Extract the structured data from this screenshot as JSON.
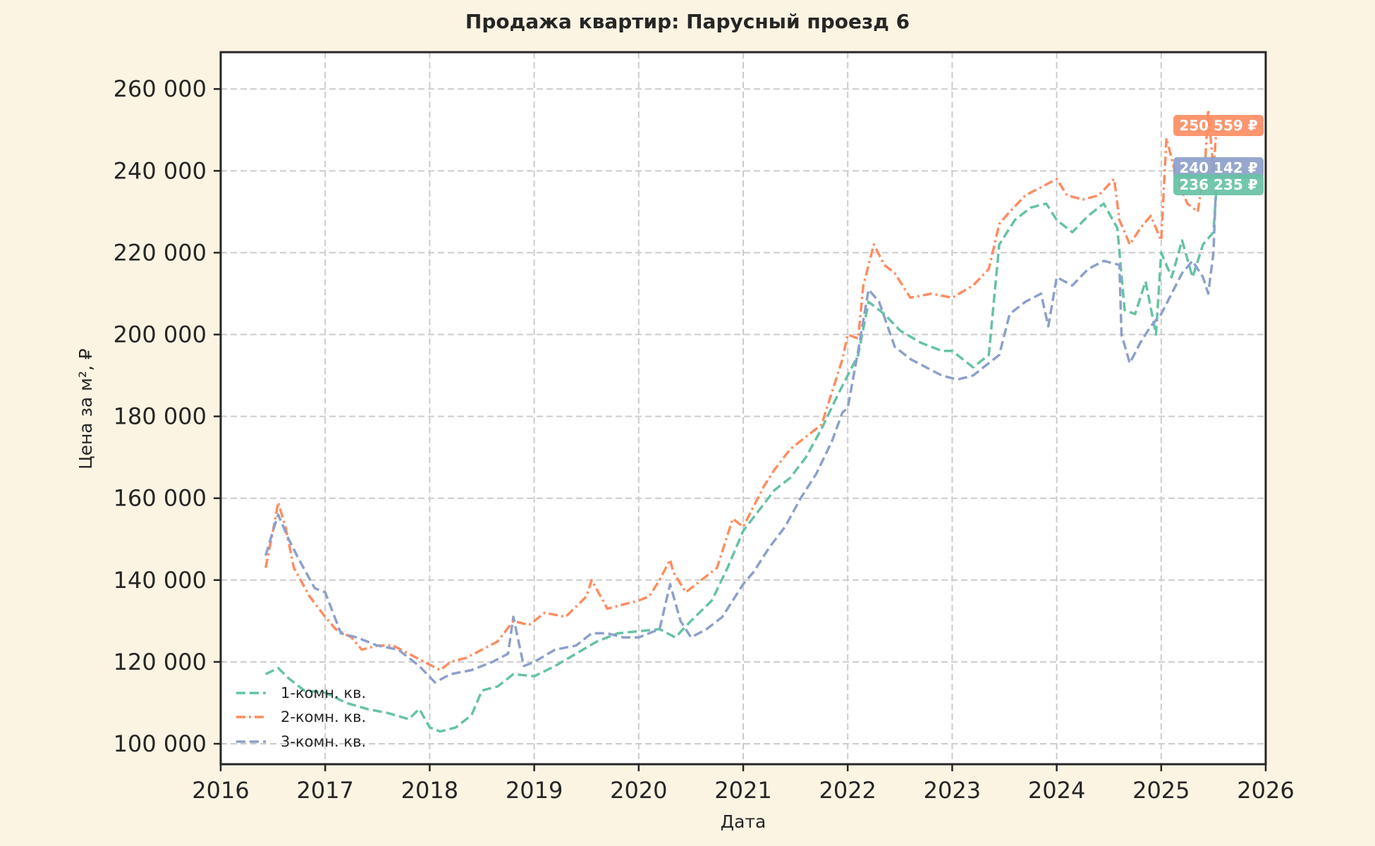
{
  "chart_data": {
    "type": "line",
    "title": "Продажа квартир: Парусный проезд 6",
    "xlabel": "Дата",
    "ylabel": "Цена за м², ₽",
    "xlim": [
      2016,
      2026
    ],
    "ylim": [
      95000,
      269000
    ],
    "xticks": [
      2016,
      2017,
      2018,
      2019,
      2020,
      2021,
      2022,
      2023,
      2024,
      2025,
      2026
    ],
    "xtick_labels": [
      "2016",
      "2017",
      "2018",
      "2019",
      "2020",
      "2021",
      "2022",
      "2023",
      "2024",
      "2025",
      "2026"
    ],
    "yticks": [
      100000,
      120000,
      140000,
      160000,
      180000,
      200000,
      220000,
      240000,
      260000
    ],
    "ytick_labels": [
      "100 000",
      "120 000",
      "140 000",
      "160 000",
      "180 000",
      "200 000",
      "220 000",
      "240 000",
      "260 000"
    ],
    "grid": true,
    "legend_position": "bottom-left",
    "series": [
      {
        "name": "1-комн. кв.",
        "color": "#66c2a5",
        "style": "dashed",
        "end_label": "236 235 ₽",
        "x": [
          2016.43,
          2016.55,
          2016.65,
          2016.8,
          2017.0,
          2017.2,
          2017.4,
          2017.6,
          2017.8,
          2017.9,
          2018.0,
          2018.1,
          2018.25,
          2018.4,
          2018.5,
          2018.65,
          2018.8,
          2019.0,
          2019.2,
          2019.4,
          2019.6,
          2019.8,
          2020.0,
          2020.2,
          2020.35,
          2020.5,
          2020.7,
          2020.85,
          2021.0,
          2021.15,
          2021.3,
          2021.45,
          2021.6,
          2021.75,
          2021.9,
          2022.0,
          2022.1,
          2022.2,
          2022.35,
          2022.5,
          2022.7,
          2022.9,
          2023.0,
          2023.2,
          2023.35,
          2023.45,
          2023.6,
          2023.75,
          2023.9,
          2024.0,
          2024.15,
          2024.3,
          2024.45,
          2024.58,
          2024.65,
          2024.75,
          2024.85,
          2024.95,
          2025.0,
          2025.1,
          2025.2,
          2025.3,
          2025.4,
          2025.5,
          2025.53
        ],
        "y": [
          117000,
          118500,
          116000,
          113000,
          112500,
          110000,
          108500,
          107500,
          106000,
          108500,
          104000,
          103000,
          104000,
          107000,
          113000,
          114000,
          117000,
          116500,
          119000,
          122000,
          125000,
          127000,
          127500,
          128000,
          126000,
          130000,
          135000,
          143000,
          152000,
          157000,
          162000,
          165000,
          170000,
          177000,
          185000,
          190000,
          195000,
          208000,
          205000,
          201000,
          198000,
          196000,
          196000,
          192000,
          195000,
          222000,
          228000,
          231000,
          232000,
          228000,
          225000,
          229000,
          232000,
          226000,
          206000,
          205000,
          213000,
          200000,
          220000,
          214000,
          223000,
          214000,
          222000,
          225000,
          236235
        ]
      },
      {
        "name": "2-комн. кв.",
        "color": "#fc8d62",
        "style": "dashdot",
        "end_label": "250 559 ₽",
        "x": [
          2016.43,
          2016.5,
          2016.55,
          2016.62,
          2016.7,
          2016.85,
          2017.0,
          2017.1,
          2017.25,
          2017.35,
          2017.5,
          2017.65,
          2017.8,
          2017.95,
          2018.1,
          2018.2,
          2018.35,
          2018.5,
          2018.65,
          2018.8,
          2018.95,
          2019.1,
          2019.3,
          2019.5,
          2019.55,
          2019.7,
          2019.85,
          2020.0,
          2020.1,
          2020.2,
          2020.3,
          2020.33,
          2020.45,
          2020.6,
          2020.75,
          2020.9,
          2021.0,
          2021.1,
          2021.2,
          2021.3,
          2021.45,
          2021.6,
          2021.75,
          2021.85,
          2021.95,
          2022.0,
          2022.1,
          2022.15,
          2022.25,
          2022.35,
          2022.45,
          2022.6,
          2022.8,
          2023.0,
          2023.2,
          2023.35,
          2023.45,
          2023.55,
          2023.7,
          2023.85,
          2024.0,
          2024.1,
          2024.25,
          2024.4,
          2024.55,
          2024.6,
          2024.7,
          2024.8,
          2024.9,
          2025.0,
          2025.05,
          2025.15,
          2025.25,
          2025.35,
          2025.42,
          2025.45,
          2025.5,
          2025.53
        ],
        "y": [
          143000,
          152000,
          159000,
          153000,
          143000,
          136000,
          131000,
          128000,
          126000,
          123000,
          124000,
          124000,
          122000,
          120000,
          118000,
          120000,
          121000,
          123000,
          125000,
          130000,
          129000,
          132000,
          131000,
          136000,
          140000,
          133000,
          134000,
          135000,
          136000,
          140000,
          145000,
          142000,
          137000,
          140000,
          143000,
          155000,
          153000,
          158000,
          163000,
          167000,
          172000,
          175000,
          178000,
          186000,
          194000,
          200000,
          199000,
          212000,
          222000,
          217000,
          215000,
          209000,
          210000,
          209000,
          212000,
          216000,
          227000,
          230000,
          234000,
          236000,
          238000,
          234000,
          233000,
          234000,
          238000,
          228000,
          222000,
          226000,
          229000,
          223000,
          248000,
          238000,
          232000,
          230000,
          242000,
          255000,
          240000,
          250559
        ]
      },
      {
        "name": "3-комн. кв.",
        "color": "#8da0cb",
        "style": "dashed",
        "end_label": "240 142 ₽",
        "x": [
          2016.43,
          2016.5,
          2016.55,
          2016.65,
          2016.75,
          2016.9,
          2017.0,
          2017.15,
          2017.3,
          2017.5,
          2017.7,
          2017.9,
          2018.05,
          2018.2,
          2018.4,
          2018.6,
          2018.75,
          2018.8,
          2018.9,
          2019.0,
          2019.2,
          2019.4,
          2019.55,
          2019.7,
          2019.85,
          2020.0,
          2020.2,
          2020.3,
          2020.4,
          2020.5,
          2020.65,
          2020.8,
          2020.95,
          2021.0,
          2021.1,
          2021.25,
          2021.4,
          2021.55,
          2021.7,
          2021.85,
          2021.95,
          2022.0,
          2022.1,
          2022.2,
          2022.3,
          2022.45,
          2022.6,
          2022.75,
          2022.9,
          2023.05,
          2023.2,
          2023.35,
          2023.45,
          2023.55,
          2023.7,
          2023.85,
          2023.92,
          2024.0,
          2024.15,
          2024.3,
          2024.45,
          2024.6,
          2024.62,
          2024.7,
          2024.8,
          2024.9,
          2025.0,
          2025.1,
          2025.2,
          2025.3,
          2025.4,
          2025.45,
          2025.5,
          2025.53
        ],
        "y": [
          146000,
          152000,
          156000,
          150000,
          145000,
          138000,
          137000,
          127000,
          126000,
          124000,
          123000,
          119000,
          115000,
          117000,
          118000,
          120000,
          122000,
          131000,
          119000,
          120000,
          123000,
          124000,
          127000,
          127000,
          126000,
          126000,
          128000,
          139000,
          130000,
          126000,
          128000,
          131000,
          137000,
          139000,
          142000,
          148000,
          153000,
          160000,
          166000,
          174000,
          181000,
          182000,
          196000,
          211000,
          208000,
          197000,
          194000,
          192000,
          190000,
          189000,
          190000,
          193000,
          195000,
          205000,
          208000,
          210000,
          202000,
          214000,
          212000,
          216000,
          218000,
          217000,
          200000,
          193000,
          198000,
          202000,
          205000,
          210000,
          215000,
          218000,
          214000,
          210000,
          220000,
          240142
        ]
      }
    ]
  }
}
